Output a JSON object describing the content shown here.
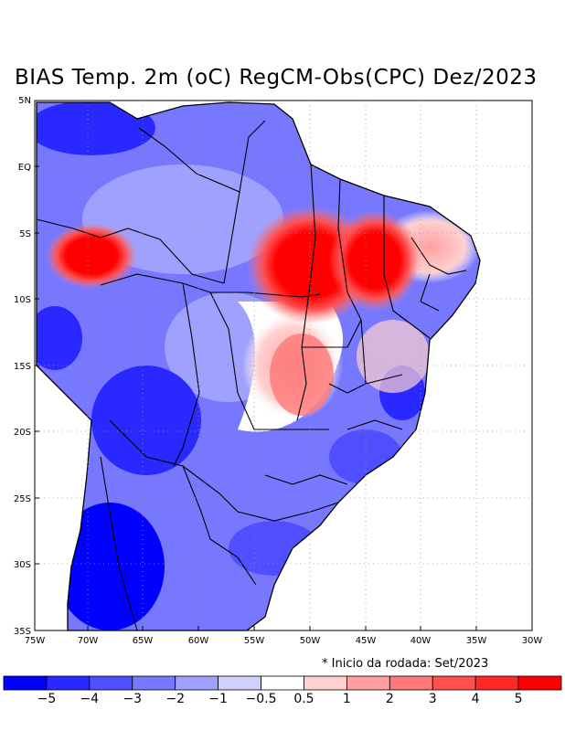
{
  "title": "BIAS Temp. 2m (oC) RegCM-Obs(CPC) Dez/2023",
  "note": "* Inicio da rodada: Set/2023",
  "lat_labels": [
    "5N",
    "EQ",
    "5S",
    "10S",
    "15S",
    "20S",
    "25S",
    "30S",
    "35S"
  ],
  "lon_labels": [
    "75W",
    "70W",
    "65W",
    "60W",
    "55W",
    "50W",
    "45W",
    "40W",
    "35W",
    "30W"
  ],
  "colorbar": {
    "colors": [
      "#0000ff",
      "#2929ff",
      "#4f4fff",
      "#7878ff",
      "#a0a0ff",
      "#d0d0ff",
      "#ffffff",
      "#ffd0d0",
      "#ffa0a0",
      "#ff7878",
      "#ff4f4f",
      "#ff2929",
      "#ff0000"
    ],
    "labels": [
      "−5",
      "−4",
      "−3",
      "−2",
      "−1",
      "−0.5",
      "0.5",
      "1",
      "2",
      "3",
      "4",
      "5"
    ]
  }
}
